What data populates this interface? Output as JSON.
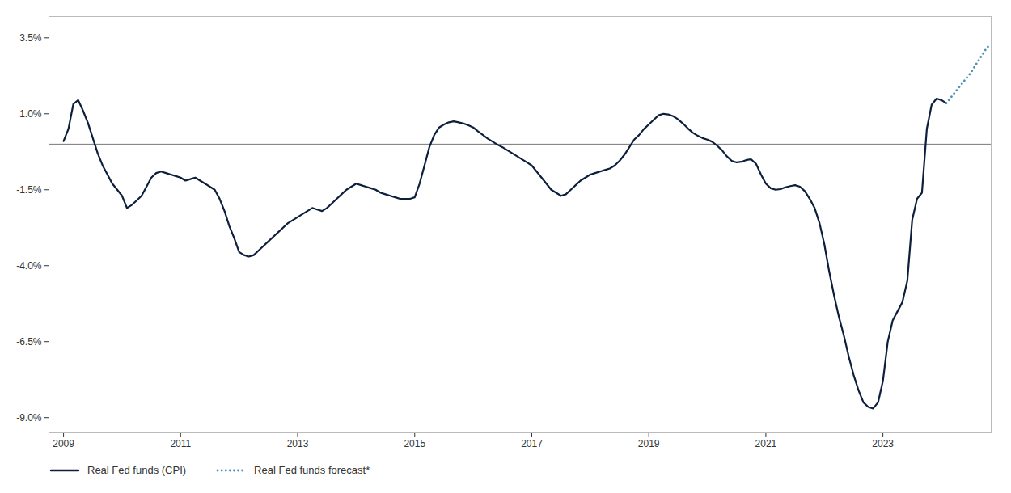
{
  "chart_data": {
    "type": "line",
    "xlim": [
      2008.75,
      2024.85
    ],
    "xticks": [
      2009,
      2011,
      2013,
      2015,
      2017,
      2019,
      2021,
      2023
    ],
    "ylim": [
      -9.5,
      4.2
    ],
    "yticks": [
      {
        "value": -9.0,
        "label": "-9.0%"
      },
      {
        "value": -6.5,
        "label": "-6.5%"
      },
      {
        "value": -4.0,
        "label": "-4.0%"
      },
      {
        "value": -1.5,
        "label": "-1.5%"
      },
      {
        "value": 1.0,
        "label": "1.0%"
      },
      {
        "value": 3.5,
        "label": "3.5%"
      }
    ],
    "grid": false,
    "legend": "lower left",
    "hlines": [
      {
        "value": 0,
        "color": "#555555"
      }
    ],
    "series": [
      {
        "name": "Real Fed funds (CPI)",
        "color": "#0d1f3c",
        "line_style": "solid",
        "x": [
          2009.0,
          2009.083,
          2009.167,
          2009.25,
          2009.333,
          2009.417,
          2009.5,
          2009.583,
          2009.667,
          2009.75,
          2009.833,
          2009.917,
          2010.0,
          2010.083,
          2010.167,
          2010.25,
          2010.333,
          2010.417,
          2010.5,
          2010.583,
          2010.667,
          2010.75,
          2010.833,
          2010.917,
          2011.0,
          2011.083,
          2011.167,
          2011.25,
          2011.333,
          2011.417,
          2011.5,
          2011.583,
          2011.667,
          2011.75,
          2011.833,
          2011.917,
          2012.0,
          2012.083,
          2012.167,
          2012.25,
          2012.333,
          2012.417,
          2012.5,
          2012.583,
          2012.667,
          2012.75,
          2012.833,
          2012.917,
          2013.0,
          2013.083,
          2013.167,
          2013.25,
          2013.333,
          2013.417,
          2013.5,
          2013.583,
          2013.667,
          2013.75,
          2013.833,
          2013.917,
          2014.0,
          2014.083,
          2014.167,
          2014.25,
          2014.333,
          2014.417,
          2014.5,
          2014.583,
          2014.667,
          2014.75,
          2014.833,
          2014.917,
          2015.0,
          2015.083,
          2015.167,
          2015.25,
          2015.333,
          2015.417,
          2015.5,
          2015.583,
          2015.667,
          2015.75,
          2015.833,
          2015.917,
          2016.0,
          2016.083,
          2016.167,
          2016.25,
          2016.333,
          2016.417,
          2016.5,
          2016.583,
          2016.667,
          2016.75,
          2016.833,
          2016.917,
          2017.0,
          2017.083,
          2017.167,
          2017.25,
          2017.333,
          2017.417,
          2017.5,
          2017.583,
          2017.667,
          2017.75,
          2017.833,
          2017.917,
          2018.0,
          2018.083,
          2018.167,
          2018.25,
          2018.333,
          2018.417,
          2018.5,
          2018.583,
          2018.667,
          2018.75,
          2018.833,
          2018.917,
          2019.0,
          2019.083,
          2019.167,
          2019.25,
          2019.333,
          2019.417,
          2019.5,
          2019.583,
          2019.667,
          2019.75,
          2019.833,
          2019.917,
          2020.0,
          2020.083,
          2020.167,
          2020.25,
          2020.333,
          2020.417,
          2020.5,
          2020.583,
          2020.667,
          2020.75,
          2020.833,
          2020.917,
          2021.0,
          2021.083,
          2021.167,
          2021.25,
          2021.333,
          2021.417,
          2021.5,
          2021.583,
          2021.667,
          2021.75,
          2021.833,
          2021.917,
          2022.0,
          2022.083,
          2022.167,
          2022.25,
          2022.333,
          2022.417,
          2022.5,
          2022.583,
          2022.667,
          2022.75,
          2022.833,
          2022.917,
          2023.0,
          2023.083,
          2023.167,
          2023.25,
          2023.333,
          2023.417,
          2023.5,
          2023.583,
          2023.667,
          2023.75,
          2023.833,
          2023.917,
          2024.0,
          2024.083
        ],
        "values": [
          0.1,
          0.5,
          1.32,
          1.45,
          1.1,
          0.7,
          0.2,
          -0.3,
          -0.7,
          -1.0,
          -1.3,
          -1.5,
          -1.7,
          -2.1,
          -2.0,
          -1.85,
          -1.7,
          -1.4,
          -1.1,
          -0.95,
          -0.9,
          -0.95,
          -1.0,
          -1.05,
          -1.1,
          -1.2,
          -1.15,
          -1.1,
          -1.2,
          -1.3,
          -1.4,
          -1.5,
          -1.8,
          -2.2,
          -2.7,
          -3.1,
          -3.55,
          -3.65,
          -3.7,
          -3.65,
          -3.5,
          -3.35,
          -3.2,
          -3.05,
          -2.9,
          -2.75,
          -2.6,
          -2.5,
          -2.4,
          -2.3,
          -2.2,
          -2.1,
          -2.15,
          -2.2,
          -2.1,
          -1.95,
          -1.8,
          -1.65,
          -1.5,
          -1.4,
          -1.3,
          -1.35,
          -1.4,
          -1.45,
          -1.5,
          -1.6,
          -1.65,
          -1.7,
          -1.75,
          -1.8,
          -1.8,
          -1.8,
          -1.75,
          -1.3,
          -0.7,
          -0.1,
          0.3,
          0.55,
          0.65,
          0.72,
          0.75,
          0.72,
          0.68,
          0.62,
          0.55,
          0.42,
          0.3,
          0.18,
          0.08,
          -0.02,
          -0.1,
          -0.2,
          -0.3,
          -0.4,
          -0.5,
          -0.6,
          -0.7,
          -0.9,
          -1.1,
          -1.3,
          -1.5,
          -1.6,
          -1.7,
          -1.65,
          -1.5,
          -1.35,
          -1.2,
          -1.1,
          -1.0,
          -0.95,
          -0.9,
          -0.85,
          -0.8,
          -0.7,
          -0.55,
          -0.35,
          -0.1,
          0.15,
          0.3,
          0.5,
          0.65,
          0.8,
          0.95,
          1.0,
          0.98,
          0.92,
          0.82,
          0.68,
          0.52,
          0.38,
          0.28,
          0.2,
          0.15,
          0.08,
          -0.05,
          -0.2,
          -0.4,
          -0.55,
          -0.6,
          -0.58,
          -0.52,
          -0.5,
          -0.65,
          -1.0,
          -1.3,
          -1.45,
          -1.5,
          -1.48,
          -1.42,
          -1.38,
          -1.35,
          -1.4,
          -1.55,
          -1.8,
          -2.1,
          -2.6,
          -3.3,
          -4.2,
          -5.0,
          -5.7,
          -6.3,
          -7.0,
          -7.6,
          -8.1,
          -8.5,
          -8.65,
          -8.7,
          -8.5,
          -7.8,
          -6.5,
          -5.8,
          -5.5,
          -5.2,
          -4.5,
          -2.5,
          -1.8,
          -1.6,
          0.5,
          1.3,
          1.5,
          1.45,
          1.35
        ]
      },
      {
        "name": "Real Fed funds forecast*",
        "color": "#4a90b8",
        "line_style": "dotted",
        "x": [
          2024.083,
          2024.167,
          2024.25,
          2024.333,
          2024.417,
          2024.5,
          2024.583,
          2024.667,
          2024.75,
          2024.833
        ],
        "values": [
          1.35,
          1.55,
          1.75,
          1.95,
          2.15,
          2.35,
          2.6,
          2.85,
          3.1,
          3.3
        ]
      }
    ]
  }
}
